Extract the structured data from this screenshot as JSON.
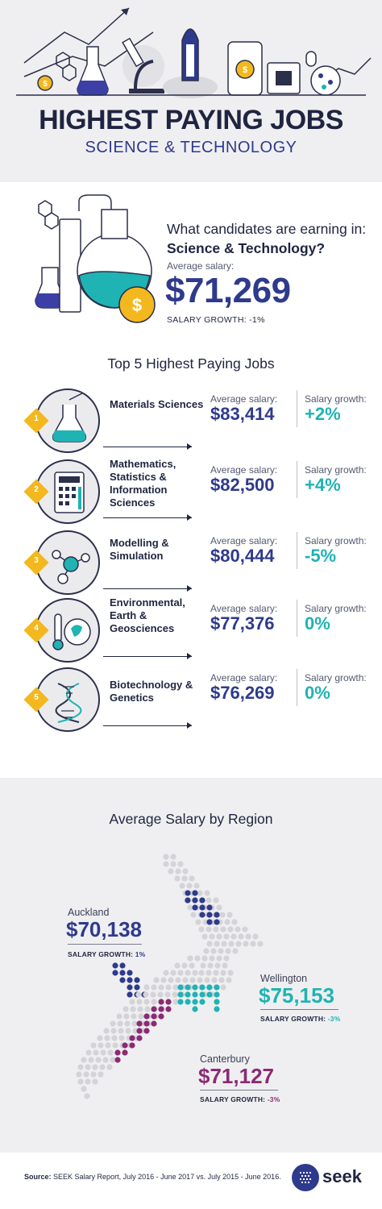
{
  "header": {
    "title": "HIGHEST PAYING JOBS",
    "subtitle": "SCIENCE & TECHNOLOGY"
  },
  "intro": {
    "question_line1": "What candidates are earning in:",
    "question_line2": "Science & Technology?",
    "avg_label": "Average salary:",
    "avg_value": "$71,269",
    "growth": "SALARY GROWTH: -1%"
  },
  "top_jobs": {
    "title": "Top 5 Highest Paying Jobs",
    "avg_label": "Average salary:",
    "growth_label": "Salary growth:",
    "items": [
      {
        "rank": "1",
        "name": "Materials Sciences",
        "salary": "$83,414",
        "growth": "+2%",
        "icon": "flask-icon"
      },
      {
        "rank": "2",
        "name": "Mathematics, Statistics & Information Sciences",
        "salary": "$82,500",
        "growth": "+4%",
        "icon": "calculator-icon"
      },
      {
        "rank": "3",
        "name": "Modelling & Simulation",
        "salary": "$80,444",
        "growth": "-5%",
        "icon": "molecule-icon"
      },
      {
        "rank": "4",
        "name": "Environmental, Earth & Geosciences",
        "salary": "$77,376",
        "growth": "0%",
        "icon": "globe-thermometer-icon"
      },
      {
        "rank": "5",
        "name": "Biotechnology & Genetics",
        "salary": "$76,269",
        "growth": "0%",
        "icon": "dna-icon"
      }
    ]
  },
  "regions": {
    "title": "Average Salary by Region",
    "items": [
      {
        "name": "Auckland",
        "salary": "$70,138",
        "growth_label": "SALARY GROWTH:",
        "growth": "1%",
        "color": "#2e3a8c"
      },
      {
        "name": "Wellington",
        "salary": "$75,153",
        "growth_label": "SALARY GROWTH:",
        "growth": "-3%",
        "color": "#1fb3b3"
      },
      {
        "name": "Canterbury",
        "salary": "$71,127",
        "growth_label": "SALARY GROWTH:",
        "growth": "-3%",
        "color": "#8c2a73"
      }
    ]
  },
  "footer": {
    "source_label": "Source:",
    "source_text": "SEEK Salary Report, July 2016 - June 2017 vs. July 2015 - June 2016.",
    "brand": "seek"
  },
  "colors": {
    "navy": "#2e3a8c",
    "teal": "#1fb3b3",
    "plum": "#8c2a73",
    "badge": "#f3b81e",
    "coin": "#f3b81e"
  }
}
